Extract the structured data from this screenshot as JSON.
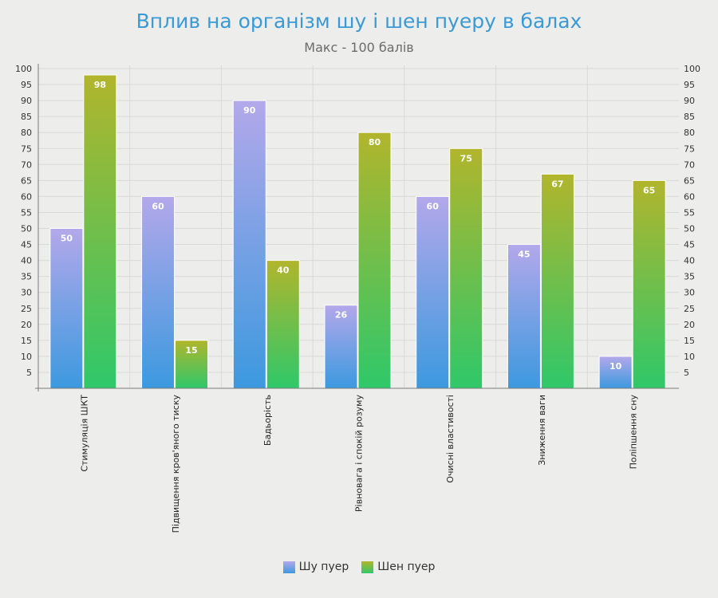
{
  "chart_data": {
    "type": "bar",
    "title": "Вплив на організм шу і шен пуеру в балах",
    "subtitle": "Макс - 100 балів",
    "xlabel": "",
    "ylabel": "",
    "ylim": [
      0,
      100
    ],
    "ytick_step": 5,
    "grid": true,
    "legend_position": "bottom-center",
    "categories": [
      "Стимуляція ШКТ",
      "Підвищення кров'яного тиску",
      "Бадьорість",
      "Рівновага і спокій розуму",
      "Очисні властивості",
      "Зниження ваги",
      "Поліпшення сну"
    ],
    "series": [
      {
        "name": "Шу пуер",
        "values": [
          50,
          60,
          90,
          26,
          60,
          45,
          10
        ],
        "color_top": "#b3a8ea",
        "color_bottom": "#3c99df"
      },
      {
        "name": "Шен пуер",
        "values": [
          98,
          15,
          40,
          80,
          75,
          67,
          65
        ],
        "color_top": "#b1b52c",
        "color_bottom": "#2fc86a"
      }
    ]
  }
}
